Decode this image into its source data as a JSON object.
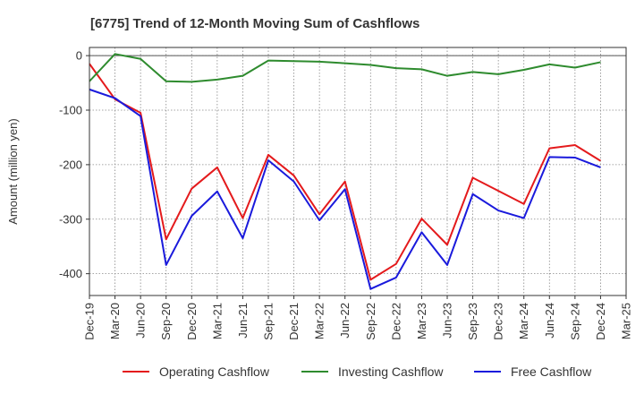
{
  "chart_data": {
    "type": "line",
    "title": "[6775]  Trend of 12-Month Moving Sum of Cashflows",
    "xlabel": "",
    "ylabel": "Amount (million yen)",
    "ylim": [
      -440,
      15
    ],
    "yticks": [
      0,
      -100,
      -200,
      -300,
      -400
    ],
    "ytick_labels": [
      "0",
      "-100",
      "-200",
      "-300",
      "-400"
    ],
    "categories": [
      "Dec-19",
      "Mar-20",
      "Jun-20",
      "Sep-20",
      "Dec-20",
      "Mar-21",
      "Jun-21",
      "Sep-21",
      "Dec-21",
      "Mar-22",
      "Jun-22",
      "Sep-22",
      "Dec-22",
      "Mar-23",
      "Jun-23",
      "Sep-23",
      "Dec-23",
      "Mar-24",
      "Jun-24",
      "Sep-24",
      "Dec-24",
      "Mar-25"
    ],
    "grid": true,
    "legend_position": "bottom",
    "series": [
      {
        "name": "Operating Cashflow",
        "color": "#e41a1c",
        "values": [
          -15,
          -80,
          -105,
          -337,
          -244,
          -205,
          -298,
          -182,
          -220,
          -291,
          -231,
          -411,
          -382,
          -299,
          -347,
          -224,
          -248,
          -272,
          -170,
          -164,
          -193,
          null
        ]
      },
      {
        "name": "Investing Cashflow",
        "color": "#2e8b2e",
        "values": [
          -47,
          3,
          -6,
          -47,
          -48,
          -44,
          -37,
          -9,
          -10,
          -11,
          -14,
          -17,
          -23,
          -25,
          -37,
          -30,
          -34,
          -26,
          -16,
          -22,
          -12,
          null
        ]
      },
      {
        "name": "Free Cashflow",
        "color": "#1a1adc",
        "values": [
          -62,
          -78,
          -111,
          -384,
          -294,
          -249,
          -335,
          -192,
          -231,
          -302,
          -245,
          -428,
          -407,
          -324,
          -384,
          -254,
          -284,
          -298,
          -186,
          -187,
          -205,
          null
        ]
      }
    ]
  }
}
